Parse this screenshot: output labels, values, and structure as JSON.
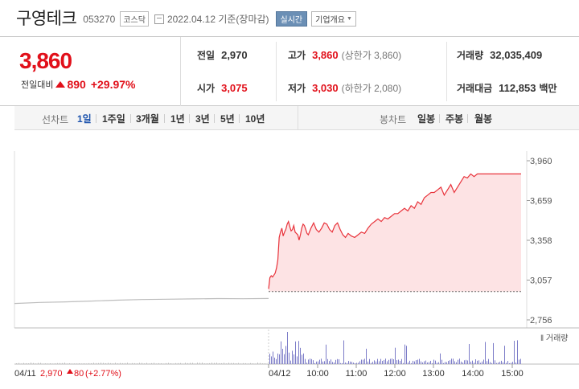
{
  "header": {
    "name": "구영테크",
    "code": "053270",
    "market": "코스닥",
    "date": "2022.04.12 기준(장마감)",
    "realtime_label": "실시간",
    "corp_label": "기업개요"
  },
  "price": {
    "current": "3,860",
    "change_label": "전일대비",
    "change_amount": "890",
    "change_pct": "+29.97%"
  },
  "stats": {
    "prev_label": "전일",
    "prev_value": "2,970",
    "high_label": "고가",
    "high_value": "3,860",
    "high_sub": "(상한가 3,860)",
    "volume_label": "거래량",
    "volume_value": "32,035,409",
    "open_label": "시가",
    "open_value": "3,075",
    "low_label": "저가",
    "low_value": "3,030",
    "low_sub": "(하한가 2,080)",
    "amount_label": "거래대금",
    "amount_value": "112,853",
    "amount_unit": "백만"
  },
  "toolbar": {
    "line_label": "선차트",
    "line_options": [
      "1일",
      "1주일",
      "3개월",
      "1년",
      "3년",
      "5년",
      "10년"
    ],
    "selected_line": "1일",
    "candle_label": "봉차트",
    "candle_options": [
      "일봉",
      "주봉",
      "월봉"
    ]
  },
  "chart_data": {
    "type": "line",
    "y_ticks": [
      "3,960",
      "3,659",
      "3,358",
      "3,057",
      "2,756"
    ],
    "ylim": [
      2756,
      3960
    ],
    "x_ticks": [
      "04/12",
      "10:00",
      "11:00",
      "12:00",
      "13:00",
      "14:00",
      "15:00"
    ],
    "volume_label": "거래량",
    "prev_day_label": "04/11",
    "prev_day_close": "2,970",
    "prev_day_change": "80",
    "prev_day_pct": "(+2.77%)",
    "prev_close_value": 2970,
    "prev_series_x": [
      0,
      0.1,
      0.2,
      0.3,
      0.4,
      0.5,
      0.6,
      0.7,
      0.8,
      0.9,
      1.0
    ],
    "prev_series_y": [
      2880,
      2888,
      2892,
      2898,
      2905,
      2910,
      2912,
      2915,
      2917,
      2916,
      2918
    ],
    "series_x": [
      0,
      2,
      4,
      6,
      8,
      10,
      12,
      14,
      16,
      18,
      20,
      22,
      24,
      26,
      28,
      30,
      32,
      34,
      36,
      38,
      40,
      42,
      44,
      46,
      48,
      50,
      52,
      54,
      56,
      58,
      60,
      64,
      68,
      72,
      76,
      80,
      84,
      88,
      92,
      96,
      100,
      104,
      108,
      112,
      116,
      120,
      125,
      130,
      135,
      140,
      145,
      150,
      155,
      160,
      165,
      170,
      175,
      180,
      185,
      190,
      195,
      200,
      205,
      210,
      215,
      220,
      225,
      230,
      235,
      240,
      245,
      250,
      255,
      260,
      265,
      270,
      275,
      280,
      285,
      290,
      295,
      300,
      305,
      310,
      315,
      320,
      330,
      340,
      350,
      360,
      370,
      380,
      381
    ],
    "series_y": [
      2990,
      3075,
      3090,
      3080,
      3095,
      3110,
      3150,
      3210,
      3380,
      3420,
      3450,
      3390,
      3420,
      3440,
      3480,
      3500,
      3460,
      3430,
      3440,
      3470,
      3420,
      3410,
      3400,
      3360,
      3400,
      3450,
      3480,
      3470,
      3440,
      3410,
      3400,
      3450,
      3490,
      3440,
      3420,
      3450,
      3490,
      3480,
      3440,
      3420,
      3470,
      3490,
      3440,
      3400,
      3380,
      3410,
      3390,
      3380,
      3400,
      3420,
      3410,
      3450,
      3480,
      3500,
      3520,
      3500,
      3530,
      3520,
      3540,
      3560,
      3560,
      3580,
      3600,
      3580,
      3620,
      3600,
      3650,
      3630,
      3680,
      3700,
      3720,
      3720,
      3740,
      3760,
      3700,
      3740,
      3780,
      3720,
      3760,
      3800,
      3840,
      3830,
      3860,
      3840,
      3860,
      3860,
      3860,
      3860,
      3860,
      3860,
      3860,
      3860,
      3860
    ]
  }
}
